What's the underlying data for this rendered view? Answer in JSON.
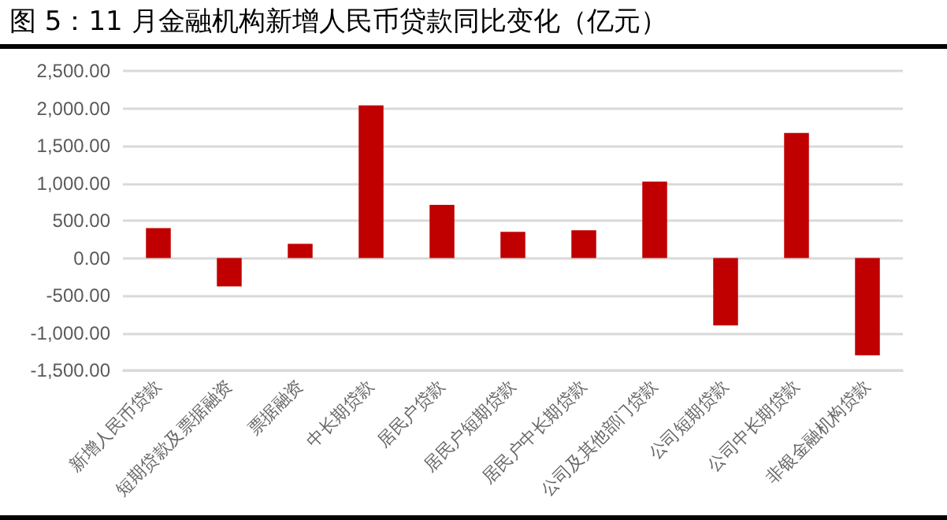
{
  "chart_data": {
    "type": "bar",
    "title": "图 5：11 月金融机构新增人民币贷款同比变化（亿元）",
    "categories": [
      "新增人民币贷款",
      "短期贷款及票据融资",
      "票据融资",
      "中长期贷款",
      "居民户贷款",
      "居民户短期贷款",
      "居民户中长期贷款",
      "公司及其他部门贷款",
      "公司短期贷款",
      "公司中长期贷款",
      "非银金融机构贷款"
    ],
    "values": [
      400,
      -380,
      190,
      2040,
      710,
      350,
      370,
      1020,
      -900,
      1670,
      -1300
    ],
    "color": "#c00000",
    "ylim": [
      -1500,
      2500
    ],
    "yticks": [
      {
        "value": -1500,
        "label": "-1,500.00"
      },
      {
        "value": -1000,
        "label": "-1,000.00"
      },
      {
        "value": -500,
        "label": "-500.00"
      },
      {
        "value": 0,
        "label": "0.00"
      },
      {
        "value": 500,
        "label": "500.00"
      },
      {
        "value": 1000,
        "label": "1,000.00"
      },
      {
        "value": 1500,
        "label": "1,500.00"
      },
      {
        "value": 2000,
        "label": "2,000.00"
      },
      {
        "value": 2500,
        "label": "2,500.00"
      }
    ],
    "grid": "y"
  }
}
